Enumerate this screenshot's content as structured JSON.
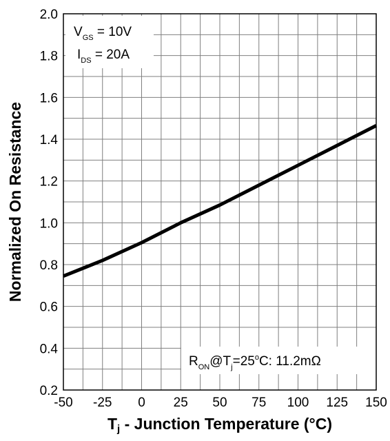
{
  "chart_data": {
    "type": "line",
    "xlabel": {
      "main": "T",
      "sub": "j",
      "rest": " - Junction Temperature (°C)"
    },
    "ylabel": "Normalized On Resistance",
    "xlim": [
      -50,
      150
    ],
    "ylim": [
      0.2,
      2.0
    ],
    "x_ticks": [
      -50,
      -25,
      0,
      25,
      50,
      75,
      100,
      125,
      150
    ],
    "x_tick_labels": [
      "-50",
      "-25",
      "0",
      "25",
      "50",
      "75",
      "100",
      "125",
      "150"
    ],
    "y_ticks": [
      0.2,
      0.4,
      0.6,
      0.8,
      1.0,
      1.2,
      1.4,
      1.6,
      1.8,
      2.0
    ],
    "y_tick_labels": [
      "0.2",
      "0.4",
      "0.6",
      "0.8",
      "1.0",
      "1.2",
      "1.4",
      "1.6",
      "1.8",
      "2.0"
    ],
    "x_minor_step": 12.5,
    "y_minor_step": 0.1,
    "grid": true,
    "series": [
      {
        "x": [
          -50,
          -25,
          0,
          25,
          50,
          75,
          100,
          125,
          150
        ],
        "values": [
          0.745,
          0.82,
          0.905,
          1.0,
          1.085,
          1.18,
          1.275,
          1.37,
          1.465
        ],
        "color": "#000000"
      }
    ],
    "annotations": {
      "vgs": {
        "main": "V",
        "sub": "GS",
        "rest": " = 10V"
      },
      "ids": {
        "main": "I",
        "sub": "DS",
        "rest": " = 20A"
      },
      "ron": {
        "p1": "R",
        "sub1": "ON",
        "p2": "@T",
        "sub2": "j",
        "p3": "=25",
        "sup": "o",
        "p4": "C: 11.2mΩ"
      }
    }
  }
}
